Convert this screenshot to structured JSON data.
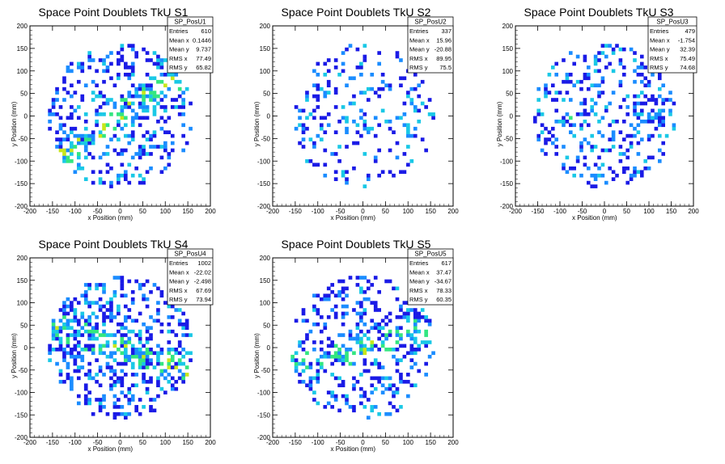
{
  "chart_data": [
    {
      "type": "heatmap",
      "title": "Space Point Doublets TkU S1",
      "xlabel": "x Position (mm)",
      "ylabel": "y Position (mm)",
      "xlim": [
        -200,
        200
      ],
      "ylim": [
        -200,
        200
      ],
      "xticks": [
        "-200",
        "-150",
        "-100",
        "-50",
        "0",
        "50",
        "100",
        "150",
        "200"
      ],
      "yticks": [
        "-200",
        "-150",
        "-100",
        "-50",
        "0",
        "50",
        "100",
        "150",
        "200"
      ],
      "stats": {
        "name": "SP_PosU1",
        "rows": [
          [
            "Entries",
            "610"
          ],
          [
            "Mean x",
            "0.1446"
          ],
          [
            "Mean y",
            "9.737"
          ],
          [
            "RMS x",
            "77.49"
          ],
          [
            "RMS y",
            "65.82"
          ]
        ]
      },
      "pattern": {
        "seed": 11,
        "density": 0.45,
        "band": 0.55,
        "angle": 0.6,
        "maxr": 160
      }
    },
    {
      "type": "heatmap",
      "title": "Space Point Doublets TkU S2",
      "xlabel": "x Position (mm)",
      "ylabel": "y Position (mm)",
      "xlim": [
        -200,
        200
      ],
      "ylim": [
        -200,
        200
      ],
      "xticks": [
        "-200",
        "-150",
        "-100",
        "-50",
        "0",
        "50",
        "100",
        "150",
        "200"
      ],
      "yticks": [
        "-200",
        "-150",
        "-100",
        "-50",
        "0",
        "50",
        "100",
        "150",
        "200"
      ],
      "stats": {
        "name": "SP_PosU2",
        "rows": [
          [
            "Entries",
            "337"
          ],
          [
            "Mean x",
            "15.96"
          ],
          [
            "Mean y",
            "-20.88"
          ],
          [
            "RMS x",
            "89.95"
          ],
          [
            "RMS y",
            "75.5"
          ]
        ]
      },
      "pattern": {
        "seed": 23,
        "density": 0.22,
        "band": 0.1,
        "angle": 0.0,
        "maxr": 160
      }
    },
    {
      "type": "heatmap",
      "title": "Space Point Doublets TkU S3",
      "xlabel": "x Position (mm)",
      "ylabel": "y Position (mm)",
      "xlim": [
        -200,
        200
      ],
      "ylim": [
        -200,
        200
      ],
      "xticks": [
        "-200",
        "-150",
        "-100",
        "-50",
        "0",
        "50",
        "100",
        "150",
        "200"
      ],
      "yticks": [
        "-200",
        "-150",
        "-100",
        "-50",
        "0",
        "50",
        "100",
        "150",
        "200"
      ],
      "stats": {
        "name": "SP_PosU3",
        "rows": [
          [
            "Entries",
            "479"
          ],
          [
            "Mean x",
            "-1.754"
          ],
          [
            "Mean y",
            "32.39"
          ],
          [
            "RMS x",
            "75.49"
          ],
          [
            "RMS y",
            "74.68"
          ]
        ]
      },
      "pattern": {
        "seed": 37,
        "density": 0.35,
        "band": 0.15,
        "angle": 0.0,
        "maxr": 160
      }
    },
    {
      "type": "heatmap",
      "title": "Space Point Doublets TkU S4",
      "xlabel": "x Position (mm)",
      "ylabel": "y Position (mm)",
      "xlim": [
        -200,
        200
      ],
      "ylim": [
        -200,
        200
      ],
      "xticks": [
        "-200",
        "-150",
        "-100",
        "-50",
        "0",
        "50",
        "100",
        "150",
        "200"
      ],
      "yticks": [
        "-200",
        "-150",
        "-100",
        "-50",
        "0",
        "50",
        "100",
        "150",
        "200"
      ],
      "stats": {
        "name": "SP_PosU4",
        "rows": [
          [
            "Entries",
            "1002"
          ],
          [
            "Mean x",
            "-22.02"
          ],
          [
            "Mean y",
            "-2.498"
          ],
          [
            "RMS x",
            "67.69"
          ],
          [
            "RMS y",
            "73.94"
          ]
        ]
      },
      "pattern": {
        "seed": 41,
        "density": 0.55,
        "band": 0.5,
        "angle": -0.35,
        "maxr": 160
      }
    },
    {
      "type": "heatmap",
      "title": "Space Point Doublets TkU S5",
      "xlabel": "x Position (mm)",
      "ylabel": "y Position (mm)",
      "xlim": [
        -200,
        200
      ],
      "ylim": [
        -200,
        200
      ],
      "xticks": [
        "-200",
        "-150",
        "-100",
        "-50",
        "0",
        "50",
        "100",
        "150",
        "200"
      ],
      "yticks": [
        "-200",
        "-150",
        "-100",
        "-50",
        "0",
        "50",
        "100",
        "150",
        "200"
      ],
      "stats": {
        "name": "SP_PosU5",
        "rows": [
          [
            "Entries",
            "617"
          ],
          [
            "Mean x",
            "37.47"
          ],
          [
            "Mean y",
            "-34.67"
          ],
          [
            "RMS x",
            "78.33"
          ],
          [
            "RMS y",
            "60.35"
          ]
        ]
      },
      "pattern": {
        "seed": 59,
        "density": 0.38,
        "band": 0.5,
        "angle": 0.25,
        "maxr": 160
      }
    }
  ],
  "palette": [
    "#1a1ae6",
    "#1a8cff",
    "#19c8e6",
    "#33e680",
    "#c8e619",
    "#e61a1a"
  ]
}
